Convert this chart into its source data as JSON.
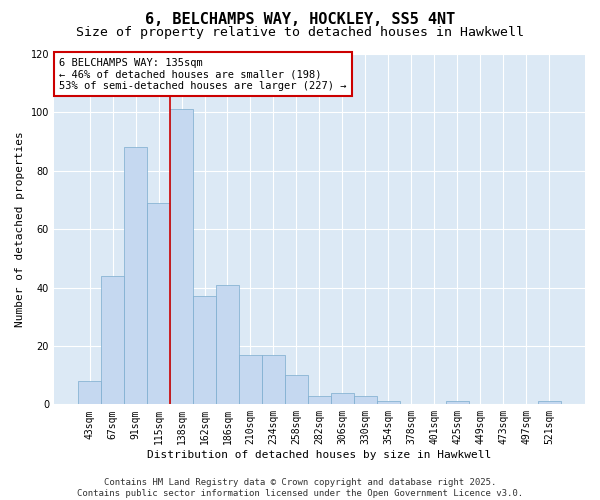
{
  "title": "6, BELCHAMPS WAY, HOCKLEY, SS5 4NT",
  "subtitle": "Size of property relative to detached houses in Hawkwell",
  "xlabel": "Distribution of detached houses by size in Hawkwell",
  "ylabel": "Number of detached properties",
  "categories": [
    "43sqm",
    "67sqm",
    "91sqm",
    "115sqm",
    "138sqm",
    "162sqm",
    "186sqm",
    "210sqm",
    "234sqm",
    "258sqm",
    "282sqm",
    "306sqm",
    "330sqm",
    "354sqm",
    "378sqm",
    "401sqm",
    "425sqm",
    "449sqm",
    "473sqm",
    "497sqm",
    "521sqm"
  ],
  "values": [
    8,
    44,
    88,
    69,
    101,
    37,
    41,
    17,
    17,
    10,
    3,
    4,
    3,
    1,
    0,
    0,
    1,
    0,
    0,
    0,
    1
  ],
  "bar_color": "#c5d8f0",
  "bar_edge_color": "#7aabce",
  "background_color": "#dce9f5",
  "vline_color": "#cc0000",
  "annotation_text": "6 BELCHAMPS WAY: 135sqm\n← 46% of detached houses are smaller (198)\n53% of semi-detached houses are larger (227) →",
  "annotation_box_color": "#ffffff",
  "annotation_box_edge": "#cc0000",
  "ylim": [
    0,
    120
  ],
  "yticks": [
    0,
    20,
    40,
    60,
    80,
    100,
    120
  ],
  "footer_text": "Contains HM Land Registry data © Crown copyright and database right 2025.\nContains public sector information licensed under the Open Government Licence v3.0.",
  "title_fontsize": 11,
  "subtitle_fontsize": 9.5,
  "axis_label_fontsize": 8,
  "tick_fontsize": 7,
  "annotation_fontsize": 7.5,
  "footer_fontsize": 6.5
}
